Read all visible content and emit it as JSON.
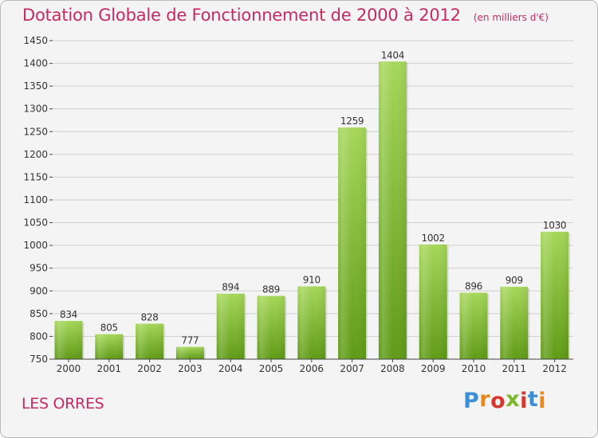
{
  "header": {
    "title": "Dotation Globale de Fonctionnement de 2000 à 2012",
    "unit": "(en milliers d'€)"
  },
  "footer": {
    "place": "LES ORRES",
    "brand": "Proxiti"
  },
  "colors": {
    "title": "#c42a63",
    "bar_light": "#a6d75a",
    "bar_dark": "#5f9b16",
    "grid": "#cfcfcf",
    "background": "#f4f4f4"
  },
  "chart_data": {
    "type": "bar",
    "title": "Dotation Globale de Fonctionnement de 2000 à 2012",
    "subtitle": "(en milliers d'€)",
    "categories": [
      "2000",
      "2001",
      "2002",
      "2003",
      "2004",
      "2005",
      "2006",
      "2007",
      "2008",
      "2009",
      "2010",
      "2011",
      "2012"
    ],
    "values": [
      834,
      805,
      828,
      777,
      894,
      889,
      910,
      1259,
      1404,
      1002,
      896,
      909,
      1030
    ],
    "data_labels": [
      "834",
      "805",
      "828",
      "777",
      "894",
      "889",
      "910",
      "1259",
      "1404",
      "1002",
      "896",
      "909",
      "1030"
    ],
    "yticks": [
      "750",
      "800",
      "850",
      "900",
      "950",
      "1000",
      "1050",
      "1100",
      "1150",
      "1200",
      "1250",
      "1300",
      "1350",
      "1400",
      "1450"
    ],
    "ylim": [
      750,
      1450
    ],
    "xlabel": "",
    "ylabel": "",
    "grid": true,
    "legend": "none"
  }
}
